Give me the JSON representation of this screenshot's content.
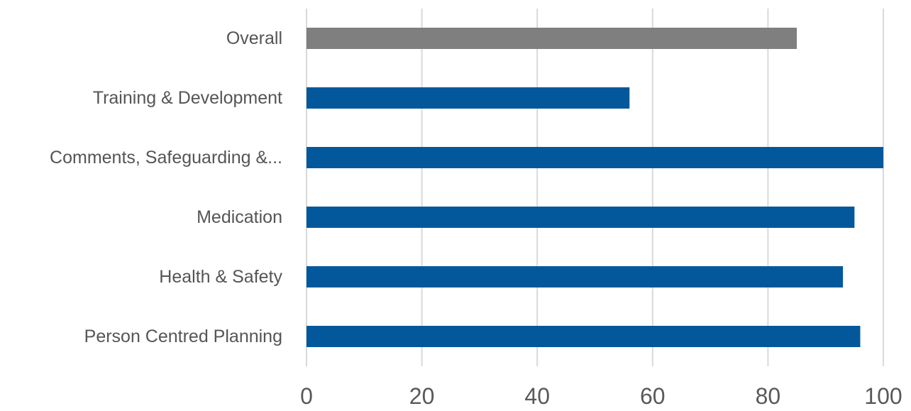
{
  "chart_data": {
    "type": "bar",
    "orientation": "horizontal",
    "categories": [
      "Overall",
      "Training & Development",
      "Comments, Safeguarding &...",
      "Medication",
      "Health & Safety",
      "Person Centred Planning"
    ],
    "values": [
      85,
      56,
      100,
      95,
      93,
      96
    ],
    "bar_colors": [
      "#7f7f7f",
      "#03589b",
      "#03589b",
      "#03589b",
      "#03589b",
      "#03589b"
    ],
    "xlim": [
      0,
      100
    ],
    "x_ticks": [
      "0",
      "20",
      "40",
      "60",
      "80",
      "100"
    ],
    "grid": "vertical",
    "grid_color": "#d9d9d9",
    "title": "",
    "xlabel": "",
    "ylabel": ""
  }
}
